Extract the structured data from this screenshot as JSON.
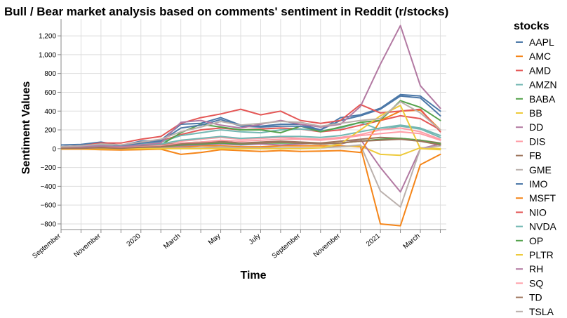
{
  "chart_data": {
    "type": "line",
    "title": "Bull / Bear market analysis based on comments' sentiment in Reddit (r/stocks)",
    "xlabel": "Time",
    "ylabel": "Sentiment Values",
    "legend_title": "stocks",
    "legend_position": "right",
    "grid": true,
    "ylim": [
      -860,
      1380
    ],
    "xlim": [
      0,
      19.3
    ],
    "y_ticks": [
      -800,
      -600,
      -400,
      -200,
      0,
      200,
      400,
      600,
      800,
      1000,
      1200
    ],
    "y_tick_labels": [
      "−800",
      "−600",
      "−400",
      "−200",
      "0",
      "200",
      "400",
      "600",
      "800",
      "1,000",
      "1,200"
    ],
    "x_ticks": [
      {
        "x": 0,
        "label": "September"
      },
      {
        "x": 2,
        "label": "November"
      },
      {
        "x": 4,
        "label": "2020"
      },
      {
        "x": 6,
        "label": "March"
      },
      {
        "x": 8,
        "label": "May"
      },
      {
        "x": 10,
        "label": "July"
      },
      {
        "x": 12,
        "label": "September"
      },
      {
        "x": 14,
        "label": "November"
      },
      {
        "x": 16,
        "label": "2021"
      },
      {
        "x": 18,
        "label": "March"
      }
    ],
    "x_categories": [
      "2019-09",
      "2019-10",
      "2019-11",
      "2019-12",
      "2020-01",
      "2020-02",
      "2020-03",
      "2020-04",
      "2020-05",
      "2020-06",
      "2020-07",
      "2020-08",
      "2020-09",
      "2020-10",
      "2020-11",
      "2020-12",
      "2021-01",
      "2021-02",
      "2021-03",
      "2021-04"
    ],
    "series": [
      {
        "name": "AAPL",
        "color": "#4c78a8",
        "values": [
          40,
          45,
          70,
          35,
          80,
          90,
          260,
          270,
          330,
          250,
          240,
          260,
          260,
          200,
          330,
          360,
          430,
          575,
          560,
          400
        ]
      },
      {
        "name": "AMC",
        "color": "#f58518",
        "values": [
          0,
          0,
          0,
          0,
          0,
          10,
          20,
          30,
          30,
          20,
          20,
          30,
          30,
          30,
          30,
          20,
          -800,
          -820,
          -170,
          -60
        ]
      },
      {
        "name": "AMD",
        "color": "#e45756",
        "values": [
          10,
          15,
          30,
          40,
          50,
          80,
          150,
          200,
          220,
          200,
          210,
          220,
          210,
          180,
          200,
          250,
          300,
          350,
          320,
          200
        ]
      },
      {
        "name": "AMZN",
        "color": "#72b7b2",
        "values": [
          20,
          25,
          40,
          30,
          50,
          70,
          140,
          170,
          200,
          180,
          170,
          200,
          210,
          190,
          220,
          280,
          200,
          240,
          210,
          120
        ]
      },
      {
        "name": "BABA",
        "color": "#54a24b",
        "values": [
          10,
          10,
          20,
          15,
          30,
          40,
          170,
          260,
          230,
          200,
          200,
          170,
          240,
          180,
          230,
          280,
          300,
          510,
          440,
          300
        ]
      },
      {
        "name": "BB",
        "color": "#eeca3b",
        "values": [
          0,
          0,
          0,
          0,
          0,
          5,
          10,
          10,
          10,
          10,
          10,
          10,
          10,
          10,
          20,
          30,
          -60,
          -70,
          10,
          0
        ]
      },
      {
        "name": "DD",
        "color": "#b279a2",
        "values": [
          0,
          0,
          10,
          5,
          10,
          20,
          30,
          40,
          50,
          40,
          50,
          40,
          50,
          60,
          50,
          100,
          -200,
          -460,
          0,
          50
        ]
      },
      {
        "name": "DIS",
        "color": "#ff9da6",
        "values": [
          10,
          10,
          20,
          20,
          30,
          50,
          80,
          100,
          120,
          100,
          110,
          120,
          110,
          100,
          120,
          150,
          200,
          220,
          180,
          100
        ]
      },
      {
        "name": "FB",
        "color": "#9d755d",
        "values": [
          10,
          10,
          20,
          15,
          30,
          40,
          60,
          70,
          80,
          60,
          70,
          80,
          70,
          60,
          80,
          100,
          120,
          110,
          90,
          60
        ]
      },
      {
        "name": "GME",
        "color": "#bab0ac",
        "values": [
          0,
          0,
          0,
          0,
          0,
          5,
          10,
          10,
          20,
          10,
          10,
          10,
          10,
          10,
          20,
          40,
          -450,
          -620,
          0,
          30
        ]
      },
      {
        "name": "IMO",
        "color": "#4c78a8",
        "values": [
          20,
          30,
          60,
          30,
          60,
          80,
          220,
          250,
          310,
          240,
          230,
          240,
          240,
          200,
          300,
          350,
          420,
          560,
          540,
          350
        ]
      },
      {
        "name": "MSFT",
        "color": "#f58518",
        "values": [
          -5,
          -5,
          -10,
          -15,
          -10,
          -5,
          -60,
          -40,
          -10,
          -20,
          -30,
          -20,
          -30,
          -25,
          -20,
          -40,
          300,
          400,
          410,
          200
        ]
      },
      {
        "name": "NIO",
        "color": "#e45756",
        "values": [
          20,
          30,
          60,
          60,
          100,
          130,
          270,
          330,
          370,
          420,
          360,
          400,
          300,
          270,
          300,
          470,
          380,
          400,
          420,
          180
        ]
      },
      {
        "name": "NVDA",
        "color": "#72b7b2",
        "values": [
          10,
          15,
          30,
          20,
          40,
          50,
          90,
          110,
          130,
          110,
          120,
          130,
          130,
          120,
          140,
          180,
          220,
          250,
          220,
          140
        ]
      },
      {
        "name": "OP",
        "color": "#54a24b",
        "values": [
          0,
          5,
          10,
          5,
          15,
          20,
          40,
          50,
          60,
          50,
          60,
          60,
          60,
          50,
          60,
          80,
          100,
          110,
          90,
          50
        ]
      },
      {
        "name": "PLTR",
        "color": "#eeca3b",
        "values": [
          0,
          0,
          0,
          0,
          0,
          0,
          0,
          0,
          0,
          0,
          0,
          0,
          0,
          10,
          50,
          200,
          350,
          460,
          0,
          -10
        ]
      },
      {
        "name": "RH",
        "color": "#b279a2",
        "values": [
          10,
          20,
          30,
          20,
          40,
          60,
          280,
          300,
          250,
          220,
          260,
          300,
          260,
          230,
          260,
          450,
          900,
          1310,
          670,
          430
        ]
      },
      {
        "name": "SQ",
        "color": "#ff9da6",
        "values": [
          5,
          5,
          10,
          10,
          20,
          30,
          60,
          70,
          90,
          80,
          90,
          100,
          100,
          90,
          110,
          140,
          160,
          180,
          160,
          90
        ]
      },
      {
        "name": "TD",
        "color": "#9d755d",
        "values": [
          5,
          5,
          10,
          5,
          15,
          20,
          50,
          60,
          70,
          60,
          60,
          70,
          60,
          50,
          60,
          80,
          90,
          100,
          80,
          40
        ]
      },
      {
        "name": "TSLA",
        "color": "#bab0ac",
        "values": [
          20,
          30,
          50,
          40,
          70,
          100,
          180,
          230,
          290,
          250,
          270,
          290,
          280,
          240,
          270,
          300,
          320,
          500,
          380,
          200
        ]
      }
    ]
  }
}
